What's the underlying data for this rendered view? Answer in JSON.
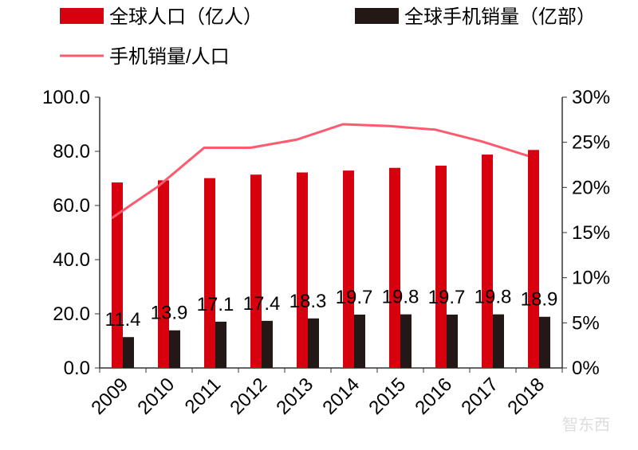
{
  "chart_data": {
    "type": "bar",
    "title": "",
    "categories": [
      "2009",
      "2010",
      "2011",
      "2012",
      "2013",
      "2014",
      "2015",
      "2016",
      "2017",
      "2018"
    ],
    "series": [
      {
        "name": "全球人口（亿人）",
        "type": "bar",
        "axis": "left",
        "color": "#d7000f",
        "values": [
          68.5,
          69.3,
          70.1,
          71.4,
          72.2,
          72.9,
          73.9,
          74.7,
          78.8,
          80.5
        ]
      },
      {
        "name": "全球手机销量（亿部）",
        "type": "bar",
        "axis": "left",
        "color": "#231815",
        "values": [
          11.4,
          13.9,
          17.1,
          17.4,
          18.3,
          19.7,
          19.8,
          19.7,
          19.8,
          18.9
        ],
        "data_labels": [
          "11.4",
          "13.9",
          "17.1",
          "17.4",
          "18.3",
          "19.7",
          "19.8",
          "19.7",
          "19.8",
          "18.9"
        ]
      },
      {
        "name": "手机销量/人口",
        "type": "line",
        "axis": "right",
        "color": "#ff5a6e",
        "values": [
          16.6,
          20.1,
          24.4,
          24.4,
          25.3,
          27.0,
          26.8,
          26.4,
          25.1,
          23.5
        ]
      }
    ],
    "y_left": {
      "range": [
        0,
        100
      ],
      "ticks": [
        "0.0",
        "20.0",
        "40.0",
        "60.0",
        "80.0",
        "100.0"
      ]
    },
    "y_right": {
      "range": [
        0,
        30
      ],
      "unit": "%",
      "ticks": [
        "0%",
        "5%",
        "10%",
        "15%",
        "20%",
        "25%",
        "30%"
      ]
    },
    "grid": false,
    "legend": "top"
  },
  "watermark": "智东西"
}
